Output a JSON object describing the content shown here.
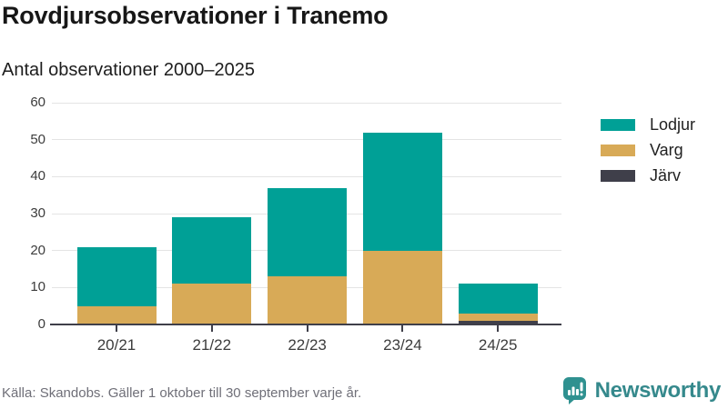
{
  "header": {
    "title": "Rovdjursobservationer i Tranemo",
    "subtitle": "Antal observationer 2000–2025"
  },
  "chart_data": {
    "type": "bar",
    "stacked": true,
    "title": "Rovdjursobservationer i Tranemo",
    "subtitle": "Antal observationer 2000–2025",
    "categories": [
      "20/21",
      "21/22",
      "22/23",
      "23/24",
      "24/25"
    ],
    "series": [
      {
        "name": "Lodjur",
        "color": "#00a096",
        "values": [
          16,
          18,
          24,
          32,
          8
        ]
      },
      {
        "name": "Varg",
        "color": "#d8aa57",
        "values": [
          5,
          11,
          13,
          20,
          2
        ]
      },
      {
        "name": "Järv",
        "color": "#3f3f4a",
        "values": [
          0,
          0,
          0,
          0,
          1
        ]
      }
    ],
    "stack_order_bottom_to_top": [
      "Järv",
      "Varg",
      "Lodjur"
    ],
    "totals": [
      21,
      29,
      37,
      52,
      11
    ],
    "xlabel": "",
    "ylabel": "",
    "ylim": [
      0,
      60
    ],
    "yticks": [
      0,
      10,
      20,
      30,
      40,
      50,
      60
    ],
    "grid": "horizontal",
    "legend_position": "right"
  },
  "footer": {
    "source": "Källa: Skandobs. Gäller 1 oktober till 30 september varje år.",
    "brand": "Newsworthy",
    "brand_color": "#35898c",
    "brand_icon": "bar-chart-speech-bubble-icon"
  },
  "colors": {
    "axis": "#3f3f49",
    "gridline": "#e4e4e4",
    "title_text": "#171717",
    "axis_text": "#3c3c3c",
    "source_text": "#6f6f78"
  }
}
